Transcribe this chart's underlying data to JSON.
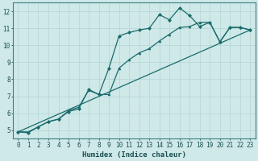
{
  "title": "",
  "xlabel": "Humidex (Indice chaleur)",
  "ylabel": "",
  "bg_color": "#cfe8e8",
  "grid_color": "#b8d8d8",
  "line_color": "#1a6b6b",
  "xlim": [
    -0.5,
    23.5
  ],
  "ylim": [
    4.5,
    12.5
  ],
  "yticks": [
    5,
    6,
    7,
    8,
    9,
    10,
    11,
    12
  ],
  "xticks": [
    0,
    1,
    2,
    3,
    4,
    5,
    6,
    7,
    8,
    9,
    10,
    11,
    12,
    13,
    14,
    15,
    16,
    17,
    18,
    19,
    20,
    21,
    22,
    23
  ],
  "line1_x": [
    0,
    1,
    2,
    3,
    4,
    5,
    6,
    7,
    8,
    9,
    10,
    11,
    12,
    13,
    14,
    15,
    16,
    17,
    18,
    19,
    20,
    21,
    22,
    23
  ],
  "line1_y": [
    4.9,
    4.85,
    5.2,
    5.5,
    5.65,
    6.1,
    6.25,
    7.4,
    7.1,
    8.65,
    10.55,
    10.75,
    10.9,
    11.0,
    11.8,
    11.5,
    12.2,
    11.75,
    11.1,
    11.35,
    10.2,
    11.05,
    11.05,
    10.9
  ],
  "line2_x": [
    0,
    1,
    2,
    3,
    4,
    5,
    6,
    7,
    8,
    9,
    10,
    11,
    12,
    13,
    14,
    15,
    16,
    17,
    18,
    19,
    20,
    21,
    22,
    23
  ],
  "line2_y": [
    4.9,
    4.9,
    5.2,
    5.5,
    5.65,
    6.15,
    6.35,
    7.35,
    7.1,
    7.1,
    8.65,
    9.15,
    9.55,
    9.8,
    10.25,
    10.65,
    11.05,
    11.1,
    11.35,
    11.35,
    10.2,
    11.05,
    11.05,
    10.9
  ],
  "line3_x": [
    0,
    23
  ],
  "line3_y": [
    4.9,
    10.9
  ]
}
